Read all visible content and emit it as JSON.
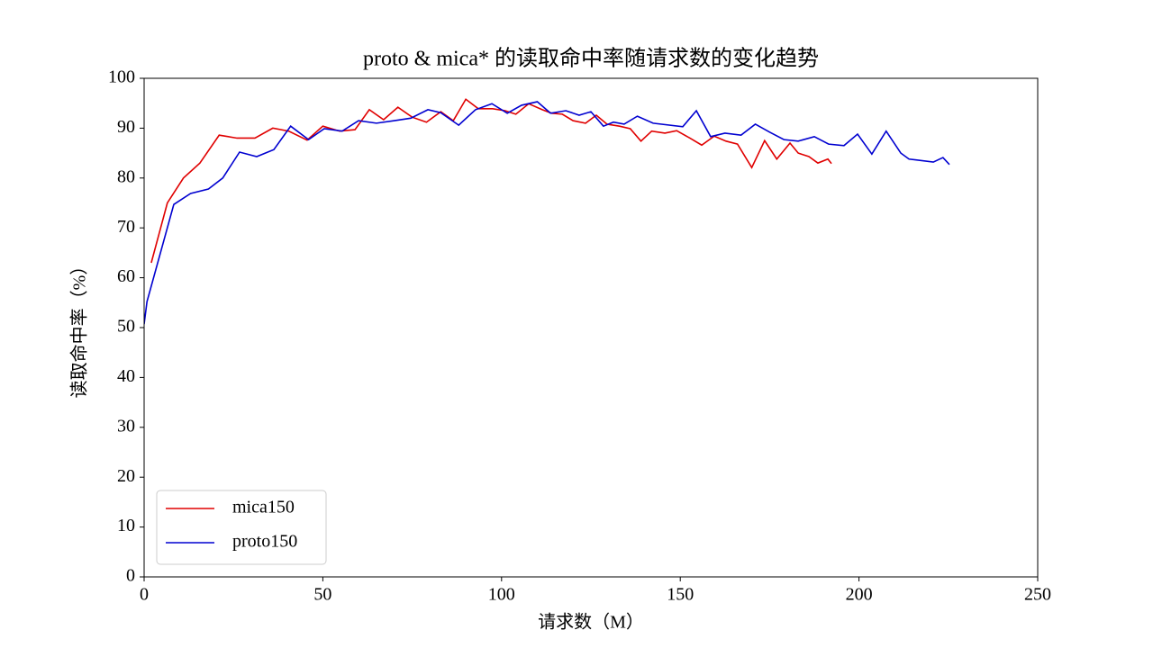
{
  "chart_data": {
    "type": "line",
    "title": "proto & mica* 的读取命中率随请求数的变化趋势",
    "x_label": "请求数（M）",
    "y_label": "读取命中率（%）",
    "xlim": [
      0,
      250
    ],
    "xticks": [
      0,
      50,
      100,
      150,
      200,
      250
    ],
    "ylim": [
      0,
      100
    ],
    "yticks": [
      0,
      10,
      20,
      30,
      40,
      50,
      60,
      70,
      80,
      90,
      100
    ],
    "legend": "lower left",
    "series": [
      {
        "name": "mica150",
        "color": "#e00000",
        "x": [
          2,
          6.5,
          11,
          15.6,
          21,
          26,
          31,
          36,
          40.5,
          45.6,
          50,
          54.7,
          59,
          63,
          67,
          71,
          75,
          79,
          83,
          86.5,
          90,
          93.5,
          97.5,
          101,
          104,
          107.6,
          111.4,
          114,
          117,
          120,
          123.5,
          126.5,
          129.5,
          133,
          136,
          139,
          142,
          145.7,
          149,
          152.7,
          156,
          159.5,
          162.8,
          166,
          170,
          173.6,
          177,
          180.7,
          183,
          186,
          188.5,
          191.3,
          192.3
        ],
        "values": [
          63,
          75,
          80,
          83,
          88.6,
          88,
          88,
          90,
          89.4,
          87.6,
          90.4,
          89.4,
          89.7,
          93.7,
          91.7,
          94.2,
          92.2,
          91.2,
          93.3,
          91.5,
          95.8,
          93.9,
          93.9,
          93.5,
          92.8,
          94.9,
          93.7,
          93,
          92.8,
          91.5,
          91,
          92.6,
          90.8,
          90.4,
          89.9,
          87.4,
          89.4,
          89,
          89.5,
          88,
          86.6,
          88.4,
          87.4,
          86.8,
          82.1,
          87.5,
          83.8,
          87,
          85,
          84.3,
          83,
          83.8,
          82.9
        ]
      },
      {
        "name": "proto150",
        "color": "#0000d0",
        "x": [
          0,
          0.8,
          8.3,
          13,
          18,
          22,
          26.7,
          31.5,
          36.3,
          41,
          46,
          50.4,
          55.4,
          60,
          65,
          70,
          74.6,
          79.4,
          83,
          88,
          92.7,
          97.3,
          101.6,
          105.6,
          110,
          113.7,
          118,
          121.7,
          125,
          128.5,
          131.3,
          134.3,
          138,
          142.4,
          150.7,
          154.5,
          158.5,
          162.5,
          167,
          171,
          175,
          179,
          183,
          187.5,
          191.5,
          195.8,
          199.6,
          203.6,
          207.6,
          211.7,
          214,
          220.8,
          223.5,
          225.3
        ],
        "values": [
          50.7,
          55.2,
          74.7,
          76.9,
          77.8,
          80,
          85.2,
          84.3,
          85.7,
          90.4,
          87.7,
          89.9,
          89.4,
          91.5,
          91,
          91.5,
          92,
          93.7,
          93.1,
          90.6,
          93.7,
          94.9,
          93,
          94.6,
          95.3,
          93,
          93.5,
          92.6,
          93.3,
          90.4,
          91.2,
          90.8,
          92.4,
          91,
          90.3,
          93.5,
          88.3,
          89,
          88.6,
          90.8,
          89.2,
          87.7,
          87.4,
          88.3,
          86.8,
          86.5,
          88.8,
          84.8,
          89.4,
          85,
          83.8,
          83.2,
          84.1,
          82.7
        ]
      }
    ]
  }
}
